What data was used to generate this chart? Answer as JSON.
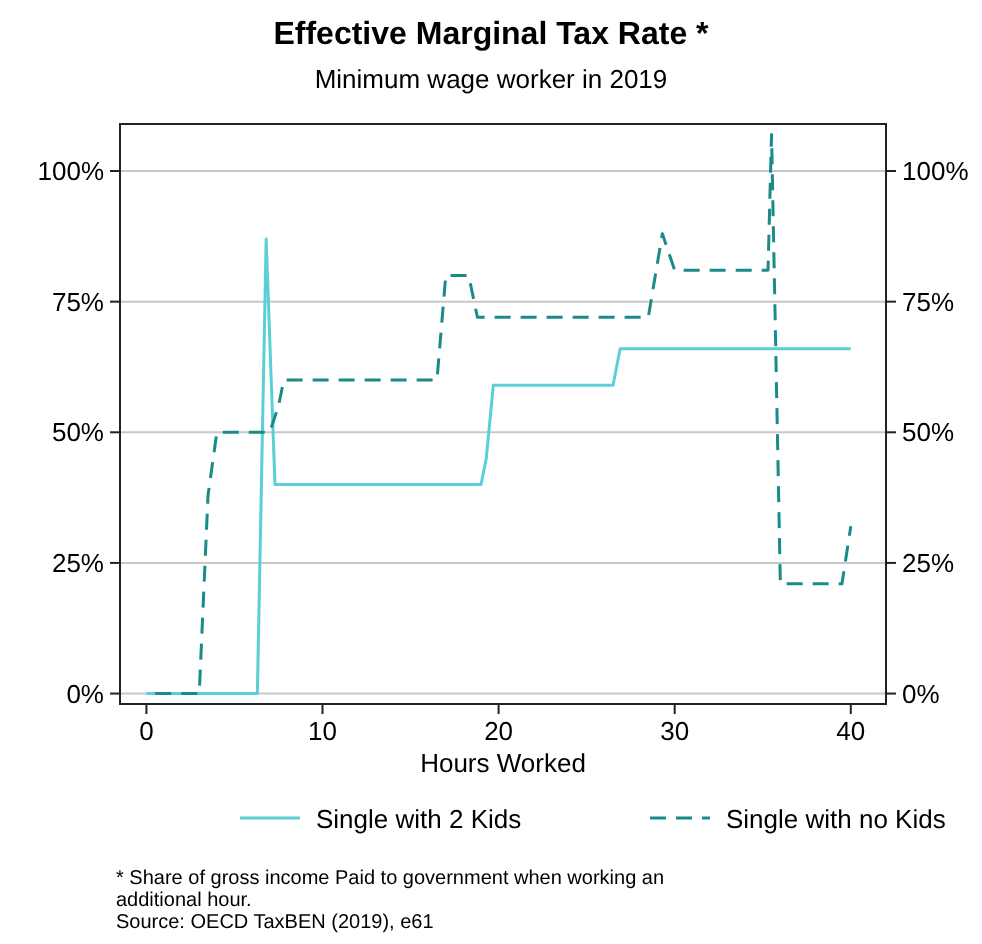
{
  "chart_data": {
    "type": "line",
    "title": "Effective Marginal Tax Rate *",
    "subtitle": "Minimum wage worker in 2019",
    "xlabel": "Hours Worked",
    "xlim": [
      -1.5,
      42
    ],
    "xticks": [
      0,
      10,
      20,
      30,
      40
    ],
    "ylim": [
      -2,
      109
    ],
    "yticks": [
      {
        "value": 0,
        "label": "0%"
      },
      {
        "value": 25,
        "label": "25%"
      },
      {
        "value": 50,
        "label": "50%"
      },
      {
        "value": 75,
        "label": "75%"
      },
      {
        "value": 100,
        "label": "100%"
      }
    ],
    "y2lim": [
      -2,
      109
    ],
    "y2ticks": [
      {
        "value": 0,
        "label": "0%"
      },
      {
        "value": 25,
        "label": "25%"
      },
      {
        "value": 50,
        "label": "50%"
      },
      {
        "value": 75,
        "label": "75%"
      },
      {
        "value": 100,
        "label": "100%"
      }
    ],
    "grid": "y",
    "legend": "bottom",
    "series": [
      {
        "name": "Single with 2 Kids",
        "color": "#5ccfd6",
        "line_style": "solid",
        "x": [
          0,
          6.3,
          6.8,
          7.3,
          19,
          19.3,
          19.7,
          26.5,
          26.9,
          40
        ],
        "values": [
          0,
          0,
          87,
          40,
          40,
          45,
          59,
          59,
          66,
          66
        ]
      },
      {
        "name": "Single with no Kids",
        "color": "#1a8a8a",
        "line_style": "dashed",
        "x": [
          0.5,
          3,
          3.5,
          4,
          7,
          7.5,
          7.8,
          16.5,
          17,
          18.3,
          18.8,
          28.5,
          29.3,
          30,
          35.3,
          35.5,
          36,
          39.5,
          40
        ],
        "values": [
          0,
          0,
          38,
          50,
          50,
          55,
          60,
          60,
          80,
          80,
          72,
          72,
          88,
          81,
          81,
          107,
          21,
          21,
          32
        ]
      }
    ],
    "annotations": [
      "* Share of gross income Paid to government when working an additional hour.",
      "Source: OECD TaxBEN (2019), e61"
    ]
  }
}
